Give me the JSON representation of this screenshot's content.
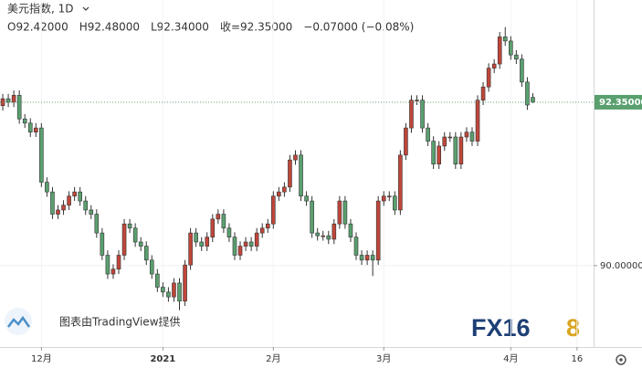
{
  "chart_data": {
    "type": "candlestick",
    "title": "美元指数, 1D",
    "ohlc_legend": [
      "O92.42000",
      "H92.48000",
      "L92.34000",
      "收=92.35000",
      "−0.07000 (−0.08%)"
    ],
    "watermark": "图表由TradingView提供",
    "logo": {
      "text": "FX16",
      "digit": "8"
    },
    "up_color": "#c0463a",
    "down_color": "#5aa06f",
    "xlim": [
      -0.5,
      107
    ],
    "xticks": [
      {
        "value": 7,
        "label": "12月"
      },
      {
        "value": 29,
        "label": "2021"
      },
      {
        "value": 49,
        "label": "2月"
      },
      {
        "value": 69,
        "label": "3月"
      },
      {
        "value": 92,
        "label": "4月"
      },
      {
        "value": 104,
        "label": "16"
      }
    ],
    "ylim": [
      88.83,
      93.82
    ],
    "yticks": [
      {
        "value": 90,
        "label": "90.00000"
      }
    ],
    "last_price": {
      "value": 92.35,
      "label": "92.35000"
    },
    "grid": true,
    "open": [
      92.3,
      92.4,
      92.35,
      92.45,
      92.11,
      92.05,
      91.92,
      91.98,
      91.2,
      91.06,
      90.74,
      90.8,
      90.87,
      91.0,
      91.06,
      90.93,
      90.8,
      90.74,
      90.47,
      90.15,
      89.88,
      89.95,
      90.15,
      90.6,
      90.54,
      90.34,
      90.28,
      90.08,
      89.88,
      89.69,
      89.62,
      89.55,
      89.75,
      89.49,
      90.01,
      90.47,
      90.34,
      90.28,
      90.41,
      90.67,
      90.74,
      90.54,
      90.41,
      90.15,
      90.28,
      90.34,
      90.28,
      90.47,
      90.54,
      90.6,
      91.0,
      91.06,
      91.13,
      91.52,
      91.59,
      91.0,
      90.93,
      90.47,
      90.43,
      90.43,
      90.38,
      90.6,
      90.93,
      90.6,
      90.41,
      90.15,
      90.08,
      90.15,
      90.08,
      90.93,
      91.0,
      91.0,
      90.8,
      91.59,
      91.98,
      92.38,
      92.38,
      91.98,
      91.79,
      91.46,
      91.72,
      91.85,
      91.85,
      91.46,
      91.85,
      91.92,
      91.79,
      92.38,
      92.57,
      92.84,
      92.9,
      93.29,
      93.23,
      93.03,
      92.97,
      92.64,
      92.42
    ],
    "high": [
      92.47,
      92.47,
      92.52,
      92.52,
      92.18,
      92.12,
      92.05,
      92.05,
      91.27,
      91.13,
      90.87,
      90.94,
      91.07,
      91.13,
      91.13,
      91.0,
      90.87,
      90.81,
      90.54,
      90.22,
      90.02,
      90.22,
      90.67,
      90.67,
      90.61,
      90.41,
      90.35,
      90.15,
      89.95,
      89.76,
      89.69,
      89.82,
      89.82,
      90.08,
      90.54,
      90.54,
      90.41,
      90.48,
      90.74,
      90.81,
      90.81,
      90.61,
      90.48,
      90.35,
      90.41,
      90.41,
      90.54,
      90.61,
      90.67,
      91.07,
      91.13,
      91.2,
      91.59,
      91.66,
      91.66,
      91.07,
      91.0,
      90.54,
      90.5,
      90.5,
      90.67,
      91.0,
      91.0,
      90.67,
      90.48,
      90.22,
      90.22,
      90.22,
      91.0,
      91.07,
      91.07,
      91.07,
      91.66,
      92.05,
      92.45,
      92.45,
      92.45,
      92.05,
      91.86,
      91.79,
      91.92,
      91.92,
      91.92,
      91.92,
      91.99,
      91.99,
      92.45,
      92.64,
      92.91,
      92.97,
      93.36,
      93.43,
      93.3,
      93.1,
      93.04,
      92.71,
      92.48
    ],
    "low": [
      92.23,
      92.28,
      92.28,
      92.04,
      91.98,
      91.85,
      91.85,
      91.13,
      90.99,
      90.67,
      90.67,
      90.73,
      90.8,
      90.93,
      90.86,
      90.73,
      90.67,
      90.4,
      90.08,
      89.81,
      89.81,
      89.88,
      90.08,
      90.47,
      90.27,
      90.21,
      90.01,
      89.81,
      89.62,
      89.55,
      89.48,
      89.48,
      89.36,
      89.42,
      89.94,
      90.27,
      90.21,
      90.21,
      90.34,
      90.6,
      90.47,
      90.34,
      90.08,
      90.08,
      90.21,
      90.21,
      90.21,
      90.4,
      90.47,
      90.53,
      90.93,
      90.99,
      91.06,
      91.45,
      90.93,
      90.86,
      90.4,
      90.36,
      90.36,
      90.31,
      90.31,
      90.53,
      90.53,
      90.34,
      90.08,
      90.01,
      90.01,
      89.85,
      90.01,
      90.86,
      90.93,
      90.73,
      90.73,
      91.52,
      91.91,
      92.31,
      91.91,
      91.72,
      91.39,
      91.39,
      91.65,
      91.78,
      91.39,
      91.39,
      91.78,
      91.72,
      91.72,
      92.31,
      92.5,
      92.77,
      92.83,
      93.16,
      92.96,
      92.9,
      92.57,
      92.24,
      92.34
    ],
    "close": [
      92.4,
      92.35,
      92.45,
      92.11,
      92.05,
      91.92,
      91.98,
      91.2,
      91.06,
      90.74,
      90.8,
      90.87,
      91.0,
      91.06,
      90.93,
      90.8,
      90.74,
      90.47,
      90.15,
      89.88,
      89.95,
      90.15,
      90.6,
      90.54,
      90.34,
      90.28,
      90.08,
      89.88,
      89.69,
      89.62,
      89.55,
      89.75,
      89.49,
      90.01,
      90.47,
      90.34,
      90.28,
      90.41,
      90.67,
      90.74,
      90.54,
      90.41,
      90.15,
      90.28,
      90.34,
      90.28,
      90.47,
      90.54,
      90.6,
      91.0,
      91.06,
      91.13,
      91.52,
      91.59,
      91.0,
      90.93,
      90.47,
      90.43,
      90.43,
      90.38,
      90.6,
      90.93,
      90.6,
      90.41,
      90.15,
      90.08,
      90.15,
      90.08,
      90.93,
      91.0,
      91.0,
      90.8,
      91.59,
      91.98,
      92.38,
      92.38,
      91.98,
      91.79,
      91.46,
      91.72,
      91.85,
      91.85,
      91.46,
      91.85,
      91.92,
      91.79,
      92.38,
      92.57,
      92.84,
      92.9,
      93.29,
      93.23,
      93.03,
      92.97,
      92.64,
      92.31,
      92.35
    ]
  }
}
